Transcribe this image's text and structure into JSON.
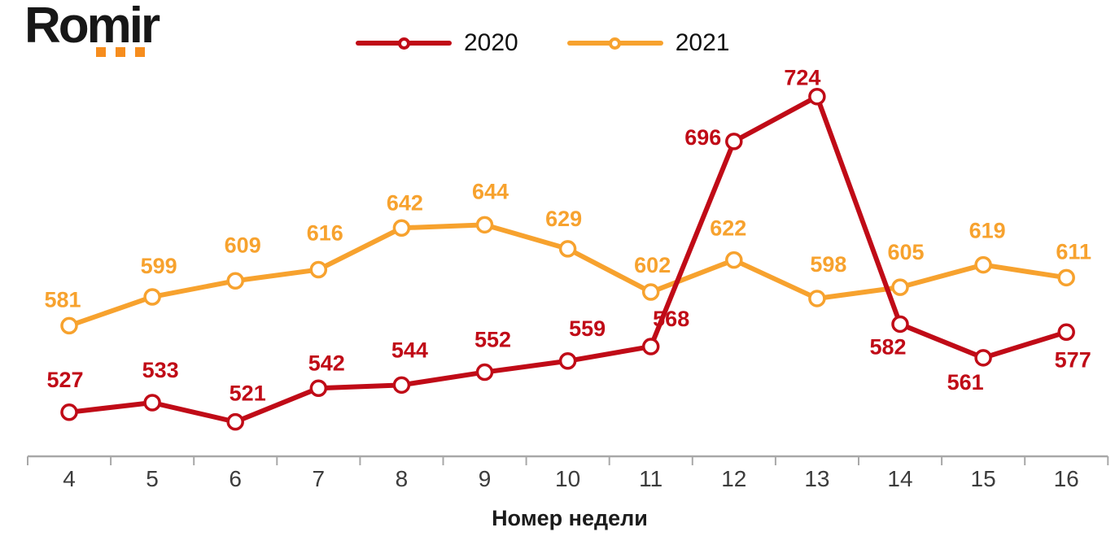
{
  "logo": {
    "text": "Romir",
    "text_color": "#171717",
    "dot_color": "#F68D1E"
  },
  "xlabel": "Номер недели",
  "axis_color": "#a8a8a8",
  "chart_data": {
    "type": "line",
    "title": "",
    "xlabel": "Номер недели",
    "ylabel": "",
    "x": [
      4,
      5,
      6,
      7,
      8,
      9,
      10,
      11,
      12,
      13,
      14,
      15,
      16
    ],
    "ylim": [
      500,
      740
    ],
    "grid": false,
    "legend_position": "top-center",
    "legend": [
      "2020",
      "2021"
    ],
    "series": [
      {
        "name": "2020",
        "color": "#C00B17",
        "values": [
          527,
          533,
          521,
          542,
          544,
          552,
          559,
          568,
          696,
          724,
          582,
          561,
          577
        ],
        "label_offsets": [
          [
            -5,
            -40
          ],
          [
            10,
            -40
          ],
          [
            15,
            -35
          ],
          [
            10,
            -31
          ],
          [
            10,
            -43
          ],
          [
            10,
            -40
          ],
          [
            24,
            -40
          ],
          [
            25,
            -34
          ],
          [
            -38,
            -5
          ],
          [
            -18,
            -23
          ],
          [
            -15,
            28
          ],
          [
            -22,
            30
          ],
          [
            8,
            34
          ]
        ]
      },
      {
        "name": "2021",
        "color": "#F7A22E",
        "values": [
          581,
          599,
          609,
          616,
          642,
          644,
          629,
          602,
          622,
          598,
          605,
          619,
          611
        ],
        "label_offsets": [
          [
            -8,
            -32
          ],
          [
            8,
            -38
          ],
          [
            9,
            -44
          ],
          [
            8,
            -45
          ],
          [
            4,
            -31
          ],
          [
            7,
            -41
          ],
          [
            -5,
            -37
          ],
          [
            2,
            -33
          ],
          [
            -7,
            -39
          ],
          [
            14,
            -42
          ],
          [
            7,
            -43
          ],
          [
            5,
            -42
          ],
          [
            9,
            -32
          ]
        ]
      }
    ]
  }
}
